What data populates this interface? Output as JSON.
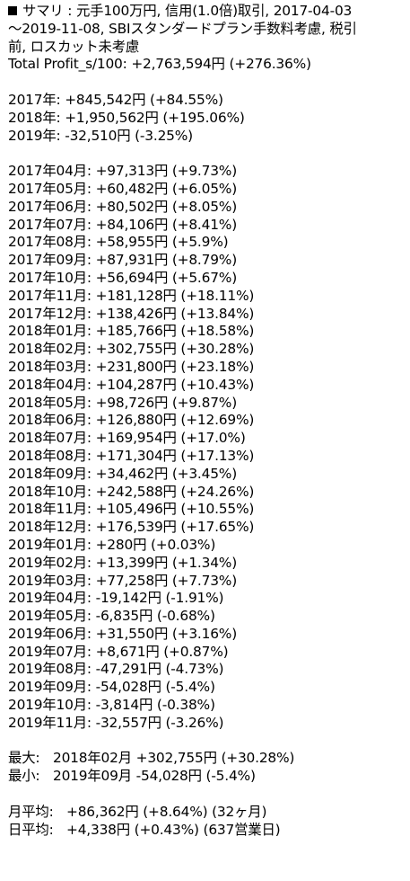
{
  "summary": {
    "title_line1": "サマリ : 元手100万円, 信用(1.0倍)取引, 2017-04-03",
    "title_line2": "～2019-11-08, SBIスタンダードプラン手数料考慮, 税引",
    "title_line3": "前, ロスカット未考慮",
    "total_profit": "Total Profit_s/100: +2,763,594円 (+276.36%)"
  },
  "yearly": [
    "2017年: +845,542円 (+84.55%)",
    "2018年: +1,950,562円 (+195.06%)",
    "2019年: -32,510円 (-3.25%)"
  ],
  "monthly": [
    "2017年04月: +97,313円 (+9.73%)",
    "2017年05月: +60,482円 (+6.05%)",
    "2017年06月: +80,502円 (+8.05%)",
    "2017年07月: +84,106円 (+8.41%)",
    "2017年08月: +58,955円 (+5.9%)",
    "2017年09月: +87,931円 (+8.79%)",
    "2017年10月: +56,694円 (+5.67%)",
    "2017年11月: +181,128円 (+18.11%)",
    "2017年12月: +138,426円 (+13.84%)",
    "2018年01月: +185,766円 (+18.58%)",
    "2018年02月: +302,755円 (+30.28%)",
    "2018年03月: +231,800円 (+23.18%)",
    "2018年04月: +104,287円 (+10.43%)",
    "2018年05月: +98,726円 (+9.87%)",
    "2018年06月: +126,880円 (+12.69%)",
    "2018年07月: +169,954円 (+17.0%)",
    "2018年08月: +171,304円 (+17.13%)",
    "2018年09月: +34,462円 (+3.45%)",
    "2018年10月: +242,588円 (+24.26%)",
    "2018年11月: +105,496円 (+10.55%)",
    "2018年12月: +176,539円 (+17.65%)",
    "2019年01月: +280円 (+0.03%)",
    "2019年02月: +13,399円 (+1.34%)",
    "2019年03月: +77,258円 (+7.73%)",
    "2019年04月: -19,142円 (-1.91%)",
    "2019年05月: -6,835円 (-0.68%)",
    "2019年06月: +31,550円 (+3.16%)",
    "2019年07月: +8,671円 (+0.87%)",
    "2019年08月: -47,291円 (-4.73%)",
    "2019年09月: -54,028円 (-5.4%)",
    "2019年10月: -3,814円 (-0.38%)",
    "2019年11月: -32,557円 (-3.26%)"
  ],
  "extremes": {
    "max_label": "最大:",
    "max_value": "2018年02月 +302,755円 (+30.28%)",
    "min_label": "最小:",
    "min_value": "2019年09月 -54,028円 (-5.4%)"
  },
  "averages": {
    "monthly_label": "月平均:",
    "monthly_value": "+86,362円 (+8.64%) (32ヶ月)",
    "daily_label": "日平均:",
    "daily_value": "+4,338円 (+0.43%) (637営業日)"
  }
}
